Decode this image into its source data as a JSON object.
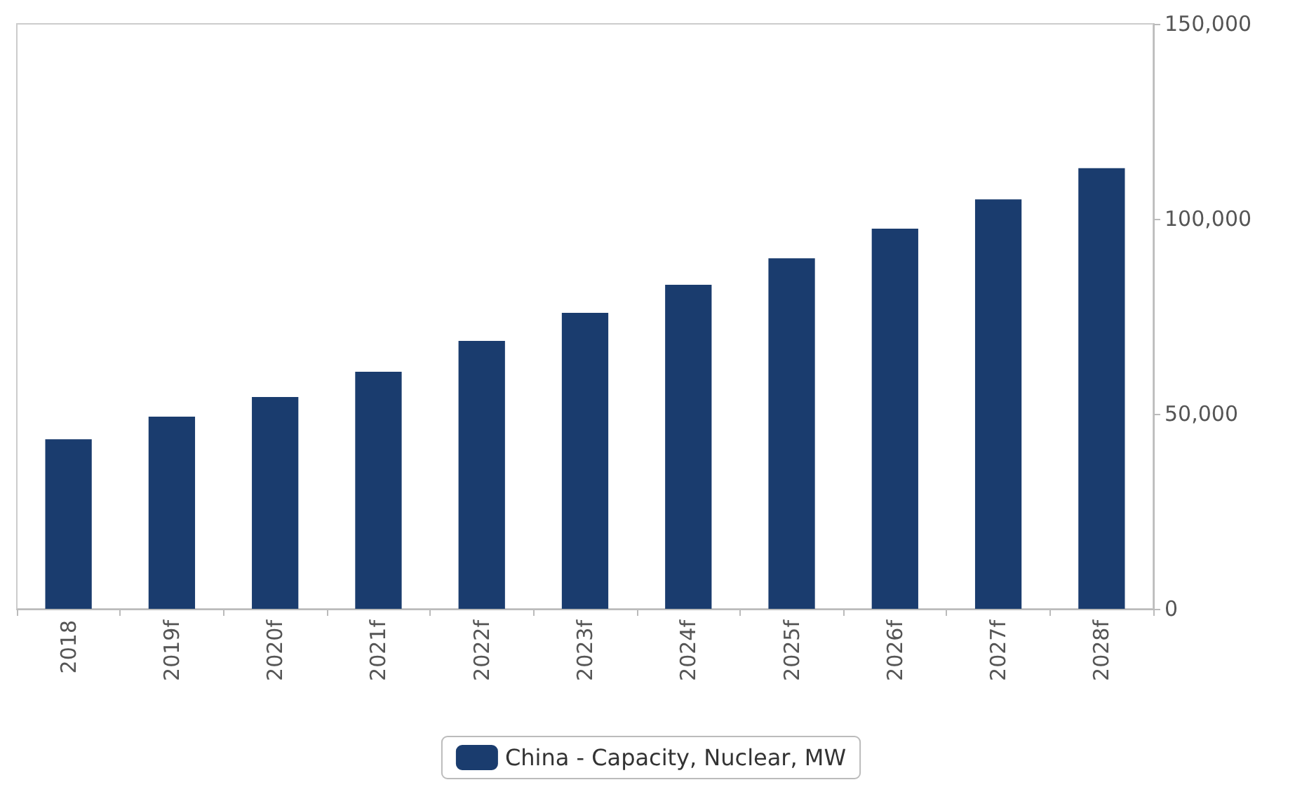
{
  "chart_data": {
    "type": "bar",
    "categories": [
      "2018",
      "2019f",
      "2020f",
      "2021f",
      "2022f",
      "2023f",
      "2024f",
      "2025f",
      "2026f",
      "2027f",
      "2028f"
    ],
    "series": [
      {
        "name": "China - Capacity, Nuclear, MW",
        "color": "#1a3c6e",
        "values": [
          43500,
          49300,
          54300,
          60800,
          68700,
          75900,
          83100,
          89900,
          97500,
          105000,
          113000
        ]
      }
    ],
    "ylim": [
      0,
      150000
    ],
    "yticks": [
      {
        "value": 0,
        "label": "0"
      },
      {
        "value": 50000,
        "label": "50,000"
      },
      {
        "value": 100000,
        "label": "100,000"
      },
      {
        "value": 150000,
        "label": "150,000"
      }
    ],
    "grid": false,
    "legend": "bottom"
  }
}
